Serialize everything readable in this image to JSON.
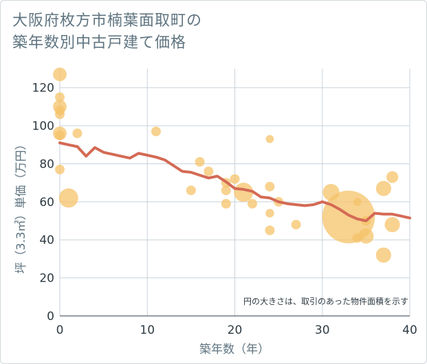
{
  "title_lines": [
    "大阪府枚方市楠葉面取町の",
    "築年数別中古戸建て価格"
  ],
  "chart_data": {
    "type": "scatter",
    "title": "大阪府枚方市楠葉面取町の築年数別中古戸建て価格",
    "xlabel": "築年数（年）",
    "ylabel": "坪（3.3㎡）単価（万円）",
    "xlim": [
      0,
      40
    ],
    "ylim": [
      0,
      130
    ],
    "x_ticks": [
      0,
      10,
      20,
      30,
      40
    ],
    "y_ticks": [
      0,
      20,
      40,
      60,
      80,
      100,
      120
    ],
    "grid": true,
    "note": "円の大きさは、取引のあった物件面積を示す",
    "colors": {
      "bubble": "#f6c36a",
      "trend": "#d46a55",
      "grid": "#c8d2da"
    },
    "points": [
      {
        "x": 0,
        "y": 127,
        "size": 2
      },
      {
        "x": 0,
        "y": 115,
        "size": 1
      },
      {
        "x": 0,
        "y": 110,
        "size": 2
      },
      {
        "x": 0,
        "y": 108,
        "size": 1
      },
      {
        "x": 0,
        "y": 106,
        "size": 1
      },
      {
        "x": 0,
        "y": 96,
        "size": 2
      },
      {
        "x": 0,
        "y": 95,
        "size": 1
      },
      {
        "x": 0,
        "y": 77,
        "size": 1
      },
      {
        "x": 1,
        "y": 62,
        "size": 4
      },
      {
        "x": 2,
        "y": 96,
        "size": 1
      },
      {
        "x": 11,
        "y": 97,
        "size": 1
      },
      {
        "x": 16,
        "y": 81,
        "size": 1
      },
      {
        "x": 17,
        "y": 76,
        "size": 1
      },
      {
        "x": 15,
        "y": 66,
        "size": 1
      },
      {
        "x": 19,
        "y": 70,
        "size": 1
      },
      {
        "x": 19,
        "y": 66,
        "size": 1
      },
      {
        "x": 19,
        "y": 59,
        "size": 1
      },
      {
        "x": 20,
        "y": 72,
        "size": 1
      },
      {
        "x": 21,
        "y": 65,
        "size": 4
      },
      {
        "x": 22,
        "y": 59,
        "size": 1
      },
      {
        "x": 24,
        "y": 93,
        "size": 0.7
      },
      {
        "x": 24,
        "y": 68,
        "size": 1
      },
      {
        "x": 24,
        "y": 54,
        "size": 0.8
      },
      {
        "x": 24,
        "y": 45,
        "size": 1
      },
      {
        "x": 25,
        "y": 60,
        "size": 1
      },
      {
        "x": 27,
        "y": 48,
        "size": 1
      },
      {
        "x": 31,
        "y": 65,
        "size": 3
      },
      {
        "x": 33,
        "y": 52,
        "size": 30
      },
      {
        "x": 34,
        "y": 60,
        "size": 0.7
      },
      {
        "x": 34,
        "y": 41,
        "size": 1
      },
      {
        "x": 35,
        "y": 50,
        "size": 1
      },
      {
        "x": 35,
        "y": 42,
        "size": 2.5
      },
      {
        "x": 37,
        "y": 67,
        "size": 2.5
      },
      {
        "x": 37,
        "y": 32,
        "size": 2.5
      },
      {
        "x": 38,
        "y": 73,
        "size": 1.5
      },
      {
        "x": 38,
        "y": 48,
        "size": 2.5
      }
    ],
    "trend": {
      "x": [
        0,
        1,
        2,
        3,
        4,
        5,
        6,
        7,
        8,
        9,
        10,
        11,
        12,
        13,
        14,
        15,
        16,
        17,
        18,
        19,
        20,
        21,
        22,
        23,
        24,
        25,
        26,
        27,
        28,
        29,
        30,
        31,
        32,
        33,
        34,
        35,
        36,
        37,
        38,
        39,
        40
      ],
      "y": [
        91,
        90,
        89,
        84,
        88.5,
        86,
        85,
        84,
        83,
        85.5,
        84.5,
        83.5,
        82,
        79,
        76,
        75.5,
        74,
        72.5,
        73.5,
        70.5,
        67,
        66.5,
        65.5,
        62.5,
        62,
        60,
        59,
        58.5,
        58,
        58.5,
        60,
        58.5,
        56,
        53,
        51,
        50,
        54,
        53.5,
        53.5,
        52.5,
        51.5
      ]
    }
  }
}
